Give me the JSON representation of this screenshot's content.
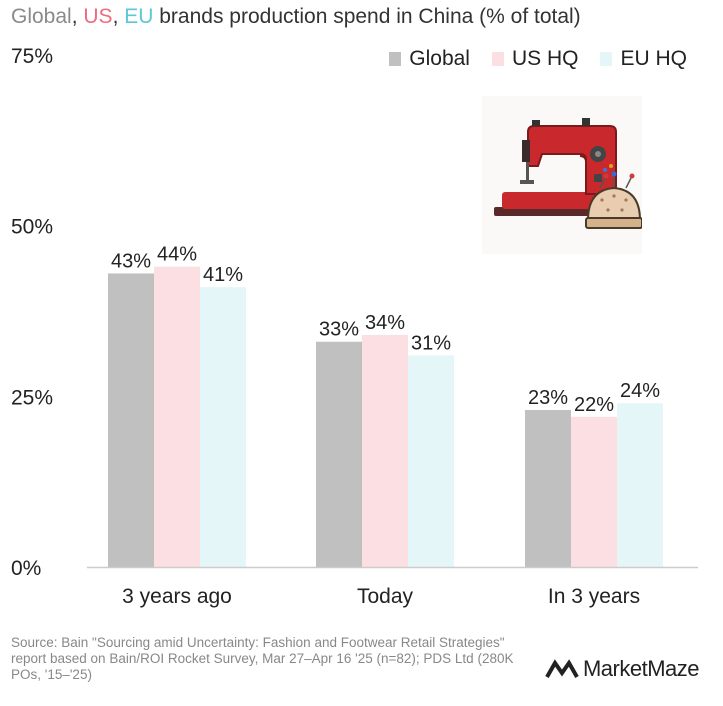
{
  "header": {
    "title_global": "Global",
    "title_sep1": ", ",
    "title_us": "US",
    "title_sep2": ", ",
    "title_eu": "EU",
    "title_rest": " brands production spend in China (% of total)"
  },
  "legend": {
    "items": [
      {
        "label": "Global",
        "color": "#c0c0c0"
      },
      {
        "label": "US HQ",
        "color": "#fcdfe3"
      },
      {
        "label": "EU HQ",
        "color": "#e5f6f8"
      }
    ]
  },
  "illustration": {
    "icon": "sewing-machine-icon",
    "secondary_icon": "pincushion-icon"
  },
  "chart_data": {
    "type": "bar",
    "categories": [
      "3 years ago",
      "Today",
      "In 3 years"
    ],
    "series": [
      {
        "name": "Global",
        "values": [
          43,
          33,
          23
        ],
        "color": "#c0c0c0",
        "labels": [
          "43%",
          "33%",
          "23%"
        ]
      },
      {
        "name": "US HQ",
        "values": [
          44,
          34,
          22
        ],
        "color": "#fcdfe3",
        "labels": [
          "44%",
          "34%",
          "22%"
        ]
      },
      {
        "name": "EU HQ",
        "values": [
          41,
          31,
          24
        ],
        "color": "#e5f6f8",
        "labels": [
          "41%",
          "31%",
          "24%"
        ]
      }
    ],
    "title": "Global, US, EU brands production spend in China (% of total)",
    "xlabel": "",
    "ylabel": "",
    "ylim": [
      0,
      75
    ],
    "yticks": [
      0,
      25,
      50,
      75
    ],
    "ytick_labels": [
      "0%",
      "25%",
      "50%",
      "75%"
    ],
    "grid": false,
    "legend_position": "top-right"
  },
  "footer": {
    "source": "Source: Bain \"Sourcing amid Uncertainty: Fashion and Footwear Retail Strategies\" report based on Bain/ROI Rocket Survey, Mar 27–Apr 16 '25 (n=82); PDS Ltd (280K POs, '15–'25)",
    "brand": "MarketMaze"
  }
}
